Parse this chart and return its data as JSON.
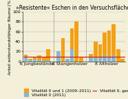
{
  "title": "»Resistente« Eschen in den Versuchsflächen",
  "ylabel": "Anteil widerstandsfähiger Bäume [%]",
  "ylim": [
    0,
    100
  ],
  "yticks": [
    0,
    20,
    40,
    60,
    80,
    100
  ],
  "group_labels": [
    "6 Jungbestände",
    "6 Stangenholzer",
    "8 Altholzer"
  ],
  "group_sizes": [
    6,
    6,
    8
  ],
  "orange_values": [
    14,
    5,
    10,
    12,
    8,
    25,
    10,
    47,
    5,
    67,
    80,
    8,
    15,
    40,
    35,
    58,
    62,
    75,
    25,
    5
  ],
  "blue_values": [
    10,
    3,
    4,
    2,
    1,
    3,
    20,
    0,
    5,
    25,
    0,
    0,
    10,
    10,
    6,
    12,
    8,
    12,
    0,
    0
  ],
  "mean_line": 10,
  "orange_color": "#F2A115",
  "blue_color": "#88B8D0",
  "mean_line_color": "#CC2222",
  "background_color": "#F4EFD8",
  "legend_fontsize": 4.2,
  "title_fontsize": 5.5,
  "tick_fontsize": 4.5,
  "ylabel_fontsize": 4.2
}
